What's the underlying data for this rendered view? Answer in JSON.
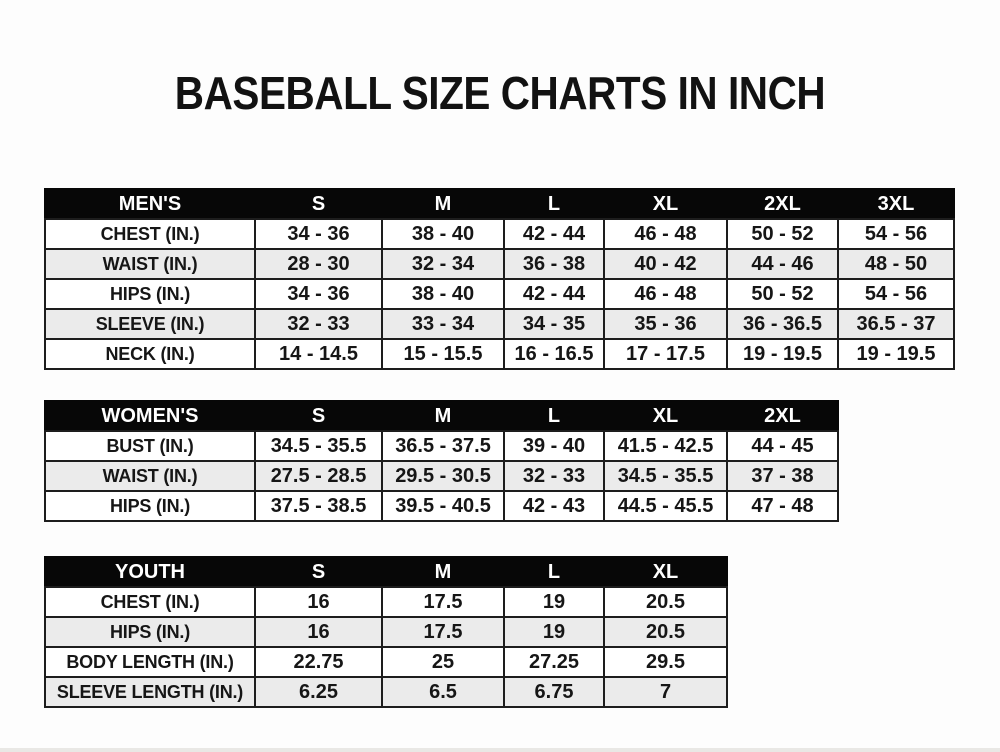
{
  "title": "BASEBALL SIZE CHARTS IN INCH",
  "colors": {
    "header_bg": "#070707",
    "header_text": "#ffffff",
    "row_bg": "#ffffff",
    "row_alt_bg": "#ebebeb",
    "border": "#1d1d1d",
    "text": "#161616"
  },
  "tables": [
    {
      "header": [
        "MEN'S",
        "S",
        "M",
        "L",
        "XL",
        "2XL",
        "3XL"
      ],
      "rows": [
        {
          "label": "CHEST (IN.)",
          "values": [
            "34 - 36",
            "38 - 40",
            "42 - 44",
            "46 - 48",
            "50 - 52",
            "54 - 56"
          ]
        },
        {
          "label": "WAIST (IN.)",
          "values": [
            "28 - 30",
            "32 - 34",
            "36 - 38",
            "40 - 42",
            "44 - 46",
            "48 - 50"
          ]
        },
        {
          "label": "HIPS (IN.)",
          "values": [
            "34 - 36",
            "38 - 40",
            "42 - 44",
            "46 - 48",
            "50 - 52",
            "54 - 56"
          ]
        },
        {
          "label": "SLEEVE (IN.)",
          "values": [
            "32 - 33",
            "33 - 34",
            "34 - 35",
            "35 - 36",
            "36 - 36.5",
            "36.5 - 37"
          ]
        },
        {
          "label": "NECK (IN.)",
          "values": [
            "14 - 14.5",
            "15 - 15.5",
            "16 - 16.5",
            "17 - 17.5",
            "19 - 19.5",
            "19 - 19.5"
          ]
        }
      ]
    },
    {
      "header": [
        "WOMEN'S",
        "S",
        "M",
        "L",
        "XL",
        "2XL"
      ],
      "rows": [
        {
          "label": "BUST (IN.)",
          "values": [
            "34.5 - 35.5",
            "36.5 - 37.5",
            "39 - 40",
            "41.5 - 42.5",
            "44 - 45"
          ]
        },
        {
          "label": "WAIST (IN.)",
          "values": [
            "27.5 - 28.5",
            "29.5 - 30.5",
            "32 - 33",
            "34.5 - 35.5",
            "37 - 38"
          ]
        },
        {
          "label": "HIPS (IN.)",
          "values": [
            "37.5 - 38.5",
            "39.5 - 40.5",
            "42 - 43",
            "44.5 - 45.5",
            "47 - 48"
          ]
        }
      ]
    },
    {
      "header": [
        "YOUTH",
        "S",
        "M",
        "L",
        "XL"
      ],
      "rows": [
        {
          "label": "CHEST (IN.)",
          "values": [
            "16",
            "17.5",
            "19",
            "20.5"
          ]
        },
        {
          "label": "HIPS (IN.)",
          "values": [
            "16",
            "17.5",
            "19",
            "20.5"
          ]
        },
        {
          "label": "BODY LENGTH (IN.)",
          "values": [
            "22.75",
            "25",
            "27.25",
            "29.5"
          ]
        },
        {
          "label": "SLEEVE LENGTH (IN.)",
          "values": [
            "6.25",
            "6.5",
            "6.75",
            "7"
          ]
        }
      ]
    }
  ]
}
